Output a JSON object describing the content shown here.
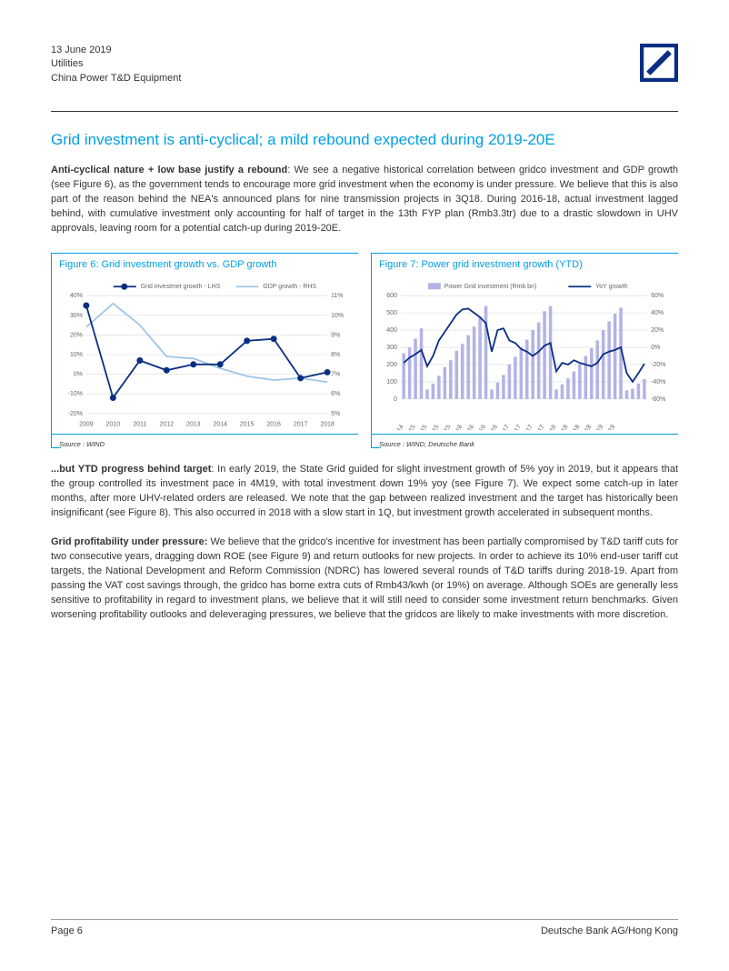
{
  "header": {
    "date": "13 June 2019",
    "sector": "Utilities",
    "title": "China Power T&D Equipment"
  },
  "logo": {
    "bg_color": "#ffffff",
    "border_color": "#0a2e82",
    "slash_color": "#0a2e82"
  },
  "section_title": "Grid investment is anti-cyclical; a mild rebound expected during 2019-20E",
  "para1_lead": "Anti-cyclical nature + low base justify a rebound",
  "para1_body": ": We see a negative historical correlation between gridco investment and GDP growth (see Figure 6), as the government tends to encourage more grid investment when the economy is under pressure. We believe that this is also part of the reason behind the NEA's announced plans for nine transmission projects in 3Q18. During 2016-18, actual investment lagged behind, with cumulative investment only accounting for half of target in the 13th FYP plan (Rmb3.3tr) due to a drastic slowdown in UHV approvals, leaving room for a potential catch-up during 2019-20E.",
  "figure6": {
    "title": "Figure 6: Grid investment growth vs. GDP growth",
    "type": "line-dual-axis",
    "legend": [
      "Grid investmet growth - LHS",
      "GDP growth - RHS"
    ],
    "x_labels": [
      "2009",
      "2010",
      "2011",
      "2012",
      "2013",
      "2014",
      "2015",
      "2016",
      "2017",
      "2018"
    ],
    "y_left": {
      "min": -20,
      "max": 40,
      "step": 10,
      "suffix": "%"
    },
    "y_right": {
      "min": 5,
      "max": 11,
      "step": 1,
      "suffix": "%"
    },
    "series_grid": [
      35,
      -12,
      7,
      2,
      5,
      5,
      17,
      18,
      -2,
      1
    ],
    "series_gdp": [
      9.4,
      10.6,
      9.5,
      7.9,
      7.8,
      7.3,
      6.9,
      6.7,
      6.8,
      6.6
    ],
    "colors": {
      "grid_line": "#0a2e82",
      "gdp_line": "#9fc5e8",
      "gridlines": "#d9d9d9",
      "axis_text": "#666666",
      "plot_bg": "#ffffff",
      "marker_fill": "#0a2e82"
    },
    "line_width": 1.8,
    "marker_size": 3.5,
    "font_size_axis": 7,
    "font_size_legend": 7,
    "source": "Source : WIND"
  },
  "figure7": {
    "title": "Figure 7: Power grid investment growth (YTD)",
    "type": "bar-line-dual-axis",
    "legend": [
      "Power Grid investment (Rmb bn)",
      "YoY growth"
    ],
    "x_labels": [
      "Oct-14",
      "Jan-15",
      "Apr-15",
      "Jul-15",
      "Oct-15",
      "Jan-16",
      "Apr-16",
      "Jul-16",
      "Oct-16",
      "Jan-17",
      "Apr-17",
      "Jul-17",
      "Oct-17",
      "Jan-18",
      "Apr-18",
      "Jul-18",
      "Oct-18",
      "Jan-19",
      "Apr-19"
    ],
    "y_left": {
      "min": 0,
      "max": 600,
      "step": 100
    },
    "y_right": {
      "min": -60,
      "max": 60,
      "step": 20,
      "suffix": "%"
    },
    "bars": [
      265,
      300,
      350,
      410,
      55,
      90,
      135,
      185,
      225,
      280,
      320,
      370,
      420,
      475,
      540,
      55,
      95,
      140,
      200,
      245,
      300,
      345,
      400,
      445,
      510,
      540,
      55,
      85,
      120,
      160,
      205,
      250,
      295,
      340,
      400,
      450,
      495,
      530,
      50,
      60,
      90,
      115
    ],
    "line": [
      -18,
      -12,
      -8,
      -3,
      -22,
      -10,
      8,
      18,
      28,
      38,
      44,
      45,
      40,
      35,
      28,
      -5,
      20,
      22,
      8,
      5,
      -2,
      -5,
      -10,
      -5,
      2,
      5,
      -28,
      -18,
      -20,
      -15,
      -18,
      -20,
      -22,
      -18,
      -8,
      -5,
      -3,
      0,
      -30,
      -40,
      -30,
      -19
    ],
    "x_group_count": 42,
    "x_tick_every": 3,
    "colors": {
      "bar": "#b3b3e6",
      "line": "#0a2e82",
      "gridlines": "#d9d9d9",
      "axis_text": "#666666",
      "plot_bg": "#ffffff"
    },
    "bar_width_ratio": 0.55,
    "line_width": 1.8,
    "font_size_axis": 7,
    "font_size_legend": 7,
    "source": "Source : WIND, Deutsche Bank"
  },
  "para2_lead": "...but YTD progress behind target",
  "para2_body": ": In early 2019, the State Grid guided for slight investment growth of 5% yoy in 2019, but it appears that the group controlled its investment pace in 4M19, with total investment down 19% yoy (see Figure 7). We expect some catch-up in later months, after more UHV-related orders are released. We note that the gap between realized investment and the target has historically been insignificant (see Figure 8). This also occurred in 2018 with a slow start in 1Q, but investment growth accelerated in subsequent months.",
  "para3_lead": "Grid profitability under pressure:",
  "para3_body": " We believe that the gridco's incentive for investment has been partially compromised by T&D tariff cuts for two consecutive years, dragging down ROE (see Figure 9) and return outlooks for new projects. In order to achieve its 10% end-user tariff cut targets, the National Development and Reform Commission (NDRC) has lowered several rounds of T&D tariffs during 2018-19. Apart from passing the VAT cost savings through, the gridco has borne extra cuts of Rmb43/kwh (or 19%) on average. Although SOEs are generally less sensitive to profitability in regard to investment plans, we believe that it will still need to consider some investment return benchmarks. Given worsening profitability outlooks and deleveraging pressures, we believe that the gridcos are likely to make investments with more discretion.",
  "footer": {
    "left": "Page 6",
    "right": "Deutsche Bank AG/Hong Kong"
  }
}
